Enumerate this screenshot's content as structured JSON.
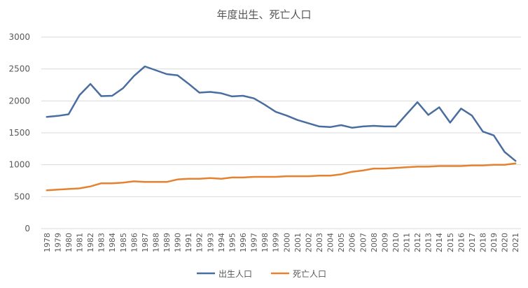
{
  "chart_data": {
    "type": "line",
    "title": "年度出生、死亡人口",
    "xlabel": "",
    "ylabel": "",
    "ylim": [
      0,
      3000
    ],
    "yticks": [
      "0",
      "500",
      "1000",
      "1500",
      "2000",
      "2500",
      "3000"
    ],
    "x": [
      "1978",
      "1979",
      "1980",
      "1981",
      "1982",
      "1983",
      "1984",
      "1985",
      "1986",
      "1987",
      "1988",
      "1989",
      "1990",
      "1991",
      "1992",
      "1993",
      "1994",
      "1995",
      "1996",
      "1997",
      "1998",
      "1999",
      "2000",
      "2001",
      "2002",
      "2003",
      "2004",
      "2005",
      "2006",
      "2007",
      "2008",
      "2009",
      "2010",
      "2011",
      "2012",
      "2013",
      "2014",
      "2015",
      "2016",
      "2017",
      "2018",
      "2019",
      "2020",
      "2021"
    ],
    "series": [
      {
        "name": "出生人口",
        "color": "#4a6da0",
        "values": [
          1750,
          1765,
          1790,
          2090,
          2265,
          2075,
          2080,
          2200,
          2390,
          2540,
          2480,
          2420,
          2400,
          2270,
          2130,
          2140,
          2120,
          2070,
          2080,
          2040,
          1940,
          1830,
          1770,
          1700,
          1650,
          1600,
          1590,
          1620,
          1580,
          1600,
          1610,
          1600,
          1600,
          1790,
          1980,
          1780,
          1900,
          1660,
          1880,
          1770,
          1520,
          1460,
          1200,
          1060
        ]
      },
      {
        "name": "死亡人口",
        "color": "#e5822f",
        "values": [
          600,
          610,
          620,
          630,
          660,
          710,
          710,
          720,
          740,
          730,
          730,
          730,
          770,
          780,
          780,
          790,
          780,
          800,
          800,
          810,
          810,
          810,
          820,
          820,
          820,
          830,
          830,
          850,
          890,
          910,
          940,
          940,
          950,
          960,
          970,
          970,
          980,
          980,
          980,
          990,
          990,
          1000,
          1000,
          1020
        ]
      }
    ],
    "grid": true,
    "legend_position": "bottom"
  }
}
